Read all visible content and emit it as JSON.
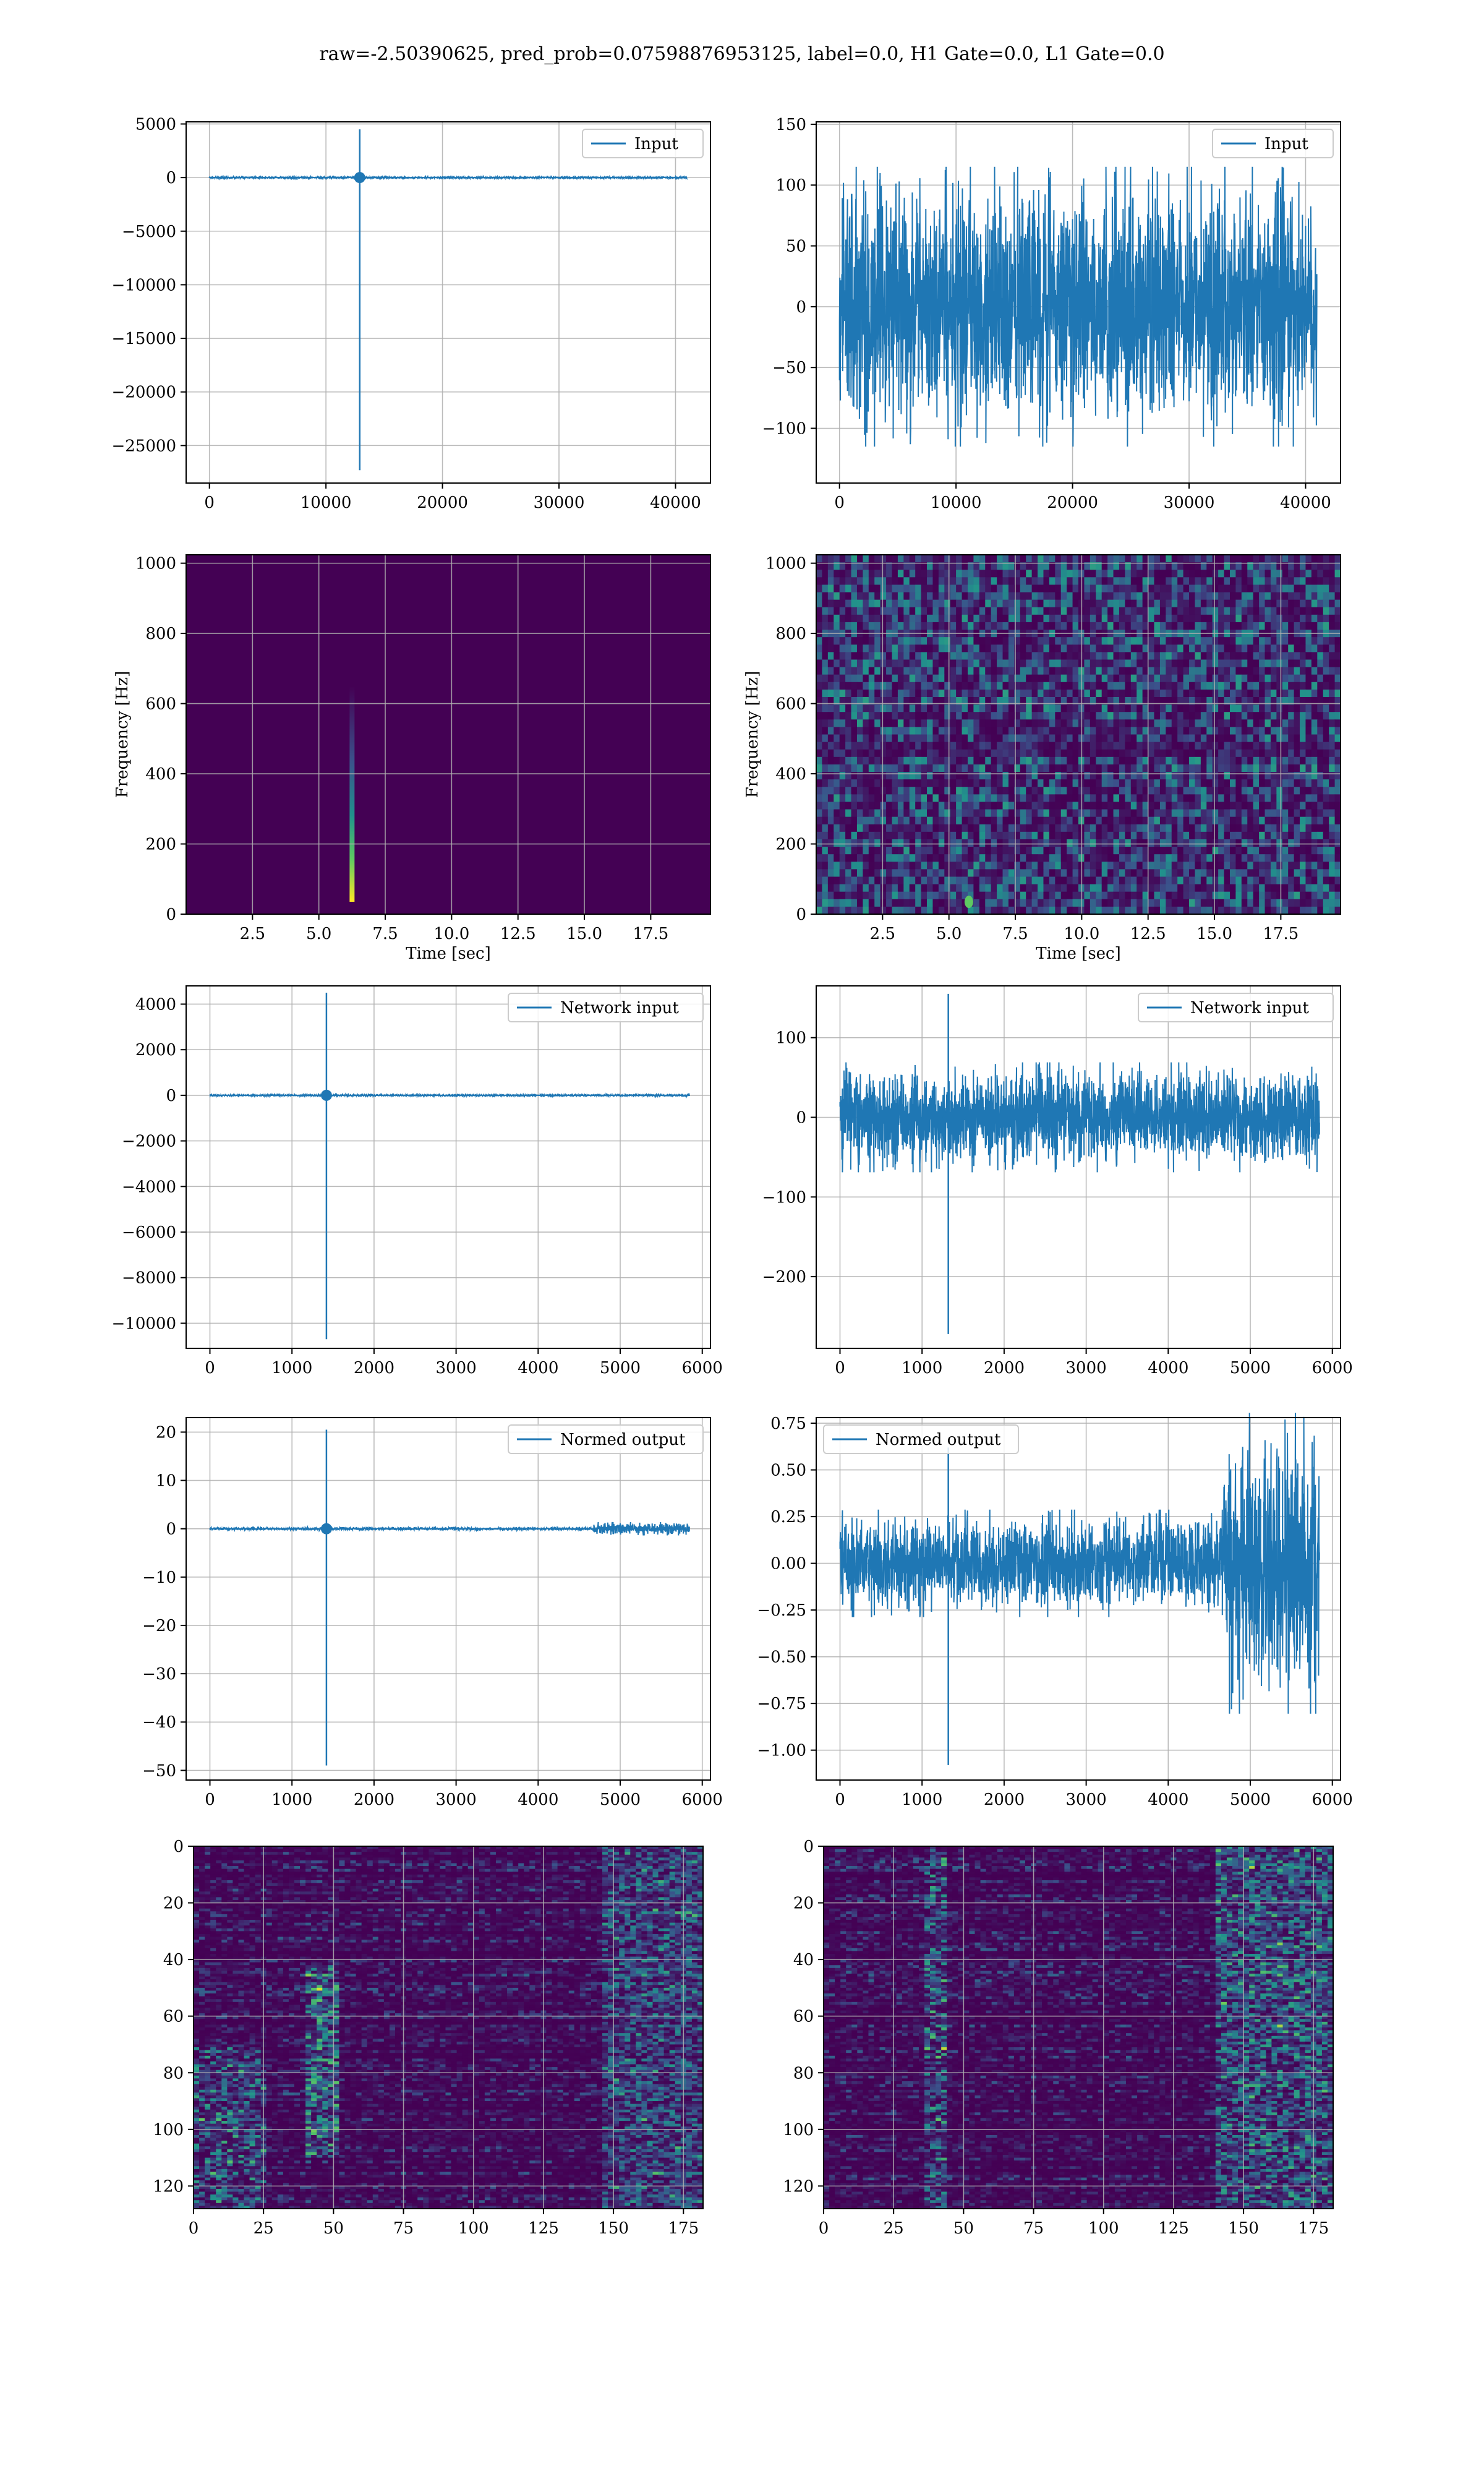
{
  "suptitle": "raw=-2.50390625, pred_prob=0.07598876953125, label=0.0, H1 Gate=0.0, L1 Gate=0.0",
  "colors": {
    "line": "#1f77b4",
    "grid": "#b0b0b0",
    "viridis_low": "#440154",
    "viridis_mid": "#21918c",
    "viridis_high": "#fde725"
  },
  "chart_data": [
    {
      "id": "input_h1",
      "type": "line",
      "legend": "Input",
      "legend_loc": "upper right",
      "xlim": [
        -2000,
        43000
      ],
      "ylim": [
        -28500,
        5200
      ],
      "xticks": [
        0,
        10000,
        20000,
        30000,
        40000
      ],
      "yticks": [
        5000,
        0,
        -5000,
        -10000,
        -15000,
        -20000,
        -25000
      ],
      "n": 40960,
      "noise_amp": 60,
      "spikes": [
        {
          "x": 12900,
          "up": 4500,
          "down": -27300
        }
      ],
      "grid": true
    },
    {
      "id": "input_l1",
      "type": "line",
      "legend": "Input",
      "legend_loc": "upper right",
      "xlim": [
        -2000,
        43000
      ],
      "ylim": [
        -145,
        152
      ],
      "xticks": [
        0,
        10000,
        20000,
        30000,
        40000
      ],
      "yticks": [
        150,
        100,
        50,
        0,
        -50,
        -100
      ],
      "n": 40960,
      "noise_amp": 100,
      "spikes": [],
      "grid": true
    },
    {
      "id": "spec_h1",
      "type": "heatmap",
      "xlabel": "Time [sec]",
      "ylabel": "Frequency [Hz]",
      "xlim": [
        0,
        19.75
      ],
      "ylim": [
        0,
        1024
      ],
      "xticks": [
        2.5,
        5.0,
        7.5,
        10.0,
        12.5,
        15.0,
        17.5
      ],
      "yticks": [
        0,
        200,
        400,
        600,
        800,
        1000
      ],
      "event": {
        "t": 6.25,
        "f_top": 650
      },
      "grid": true
    },
    {
      "id": "spec_l1",
      "type": "heatmap",
      "xlabel": "Time [sec]",
      "ylabel": "Frequency [Hz]",
      "xlim": [
        0,
        19.75
      ],
      "ylim": [
        0,
        1024
      ],
      "xticks": [
        2.5,
        5.0,
        7.5,
        10.0,
        12.5,
        15.0,
        17.5
      ],
      "yticks": [
        0,
        200,
        400,
        600,
        800,
        1000
      ],
      "event": {
        "t": 5.75,
        "f": 35
      },
      "grid": true
    },
    {
      "id": "net_h1",
      "type": "line",
      "legend": "Network input",
      "legend_loc": "upper right",
      "xlim": [
        -290,
        6100
      ],
      "ylim": [
        -11100,
        4800
      ],
      "xticks": [
        0,
        1000,
        2000,
        3000,
        4000,
        5000,
        6000
      ],
      "yticks": [
        4000,
        2000,
        0,
        -2000,
        -4000,
        -6000,
        -8000,
        -10000
      ],
      "n": 5842,
      "noise_amp": 25,
      "spikes": [
        {
          "x": 1420,
          "up": 4500,
          "down": -10700
        }
      ],
      "end_burst": 80,
      "grid": true
    },
    {
      "id": "net_l1",
      "type": "line",
      "legend": "Network input",
      "legend_loc": "upper right",
      "xlim": [
        -290,
        6100
      ],
      "ylim": [
        -290,
        165
      ],
      "xticks": [
        0,
        1000,
        2000,
        3000,
        4000,
        5000,
        6000
      ],
      "yticks": [
        100,
        0,
        -100,
        -200
      ],
      "n": 5842,
      "noise_amp": 60,
      "spikes": [
        {
          "x": 1320,
          "up": 155,
          "down": -272
        }
      ],
      "grid": true
    },
    {
      "id": "out_h1",
      "type": "line",
      "legend": "Normed output",
      "legend_loc": "upper right",
      "xlim": [
        -290,
        6100
      ],
      "ylim": [
        -52,
        23
      ],
      "xticks": [
        0,
        1000,
        2000,
        3000,
        4000,
        5000,
        6000
      ],
      "yticks": [
        20,
        10,
        0,
        -10,
        -20,
        -30,
        -40,
        -50
      ],
      "n": 5842,
      "noise_amp": 0.3,
      "spikes": [
        {
          "x": 1420,
          "up": 20.5,
          "down": -49
        }
      ],
      "late_noise": 1.2,
      "grid": true
    },
    {
      "id": "out_l1",
      "type": "line",
      "legend": "Normed output",
      "legend_loc": "upper left",
      "xlim": [
        -290,
        6100
      ],
      "ylim": [
        -1.16,
        0.78
      ],
      "xticks": [
        0,
        1000,
        2000,
        3000,
        4000,
        5000,
        6000
      ],
      "yticks": [
        0.75,
        0.5,
        0.25,
        0.0,
        -0.25,
        -0.5,
        -0.75,
        -1.0
      ],
      "n": 5842,
      "noise_amp": 0.25,
      "spikes": [
        {
          "x": 1320,
          "up": 0.62,
          "down": -1.08
        }
      ],
      "late_noise": 0.7,
      "grid": true
    },
    {
      "id": "feat_h1",
      "type": "heatmap",
      "rows": 128,
      "cols": 182,
      "xlim": [
        0,
        182
      ],
      "ylim": [
        128,
        0
      ],
      "xticks": [
        0,
        25,
        50,
        75,
        100,
        125,
        150,
        175
      ],
      "yticks": [
        0,
        20,
        40,
        60,
        80,
        100,
        120
      ],
      "grid": true
    },
    {
      "id": "feat_l1",
      "type": "heatmap",
      "rows": 128,
      "cols": 182,
      "xlim": [
        0,
        182
      ],
      "ylim": [
        128,
        0
      ],
      "xticks": [
        0,
        25,
        50,
        75,
        100,
        125,
        150,
        175
      ],
      "yticks": [
        0,
        20,
        40,
        60,
        80,
        100,
        120
      ],
      "grid": true
    }
  ]
}
